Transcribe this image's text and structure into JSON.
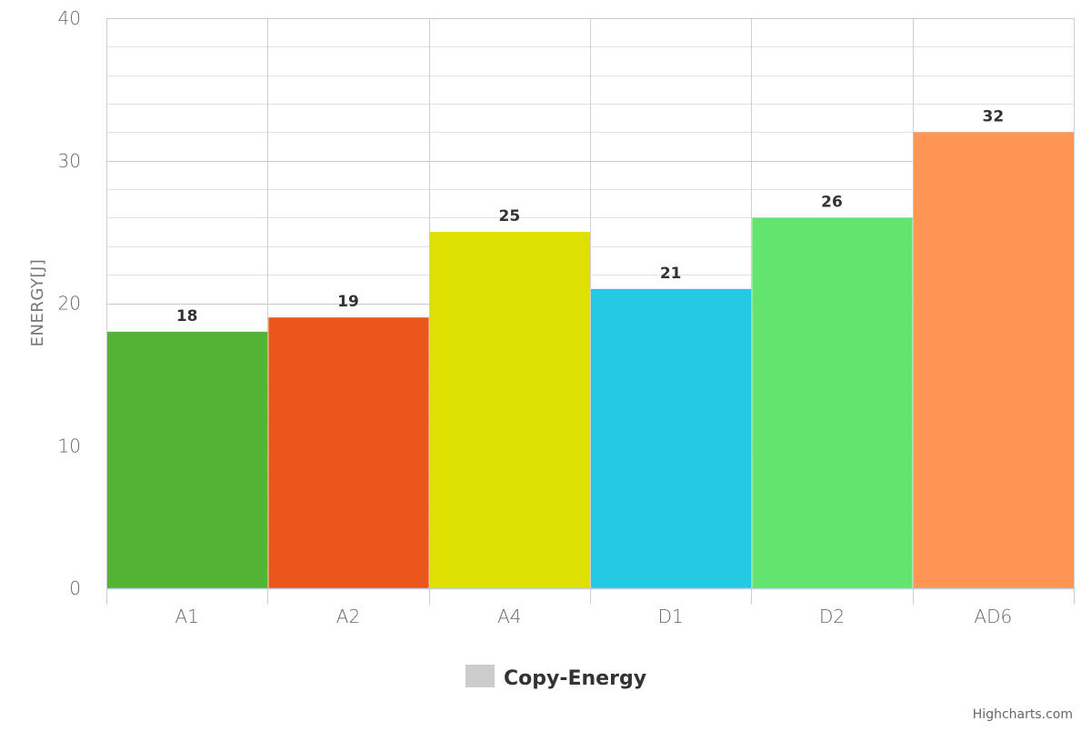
{
  "chart_data": {
    "type": "bar",
    "title": "",
    "xlabel": "",
    "ylabel": "ENERGY[J]",
    "categories": [
      "A1",
      "A2",
      "A4",
      "D1",
      "D2",
      "AD6"
    ],
    "series": [
      {
        "name": "Copy-Energy",
        "values": [
          18,
          19,
          25,
          21,
          26,
          32
        ],
        "colors": [
          "#52b334",
          "#eb561c",
          "#dde000",
          "#24c9e3",
          "#62e46e",
          "#ff9654"
        ]
      }
    ],
    "ylim": [
      0,
      40
    ],
    "yticks": [
      0,
      10,
      20,
      30,
      40
    ],
    "grid": true,
    "data_labels": true,
    "legend": {
      "position": "bottom-center",
      "items": [
        {
          "label": "Copy-Energy",
          "color": "#cccccc"
        }
      ]
    },
    "credits": "Highcharts.com"
  }
}
